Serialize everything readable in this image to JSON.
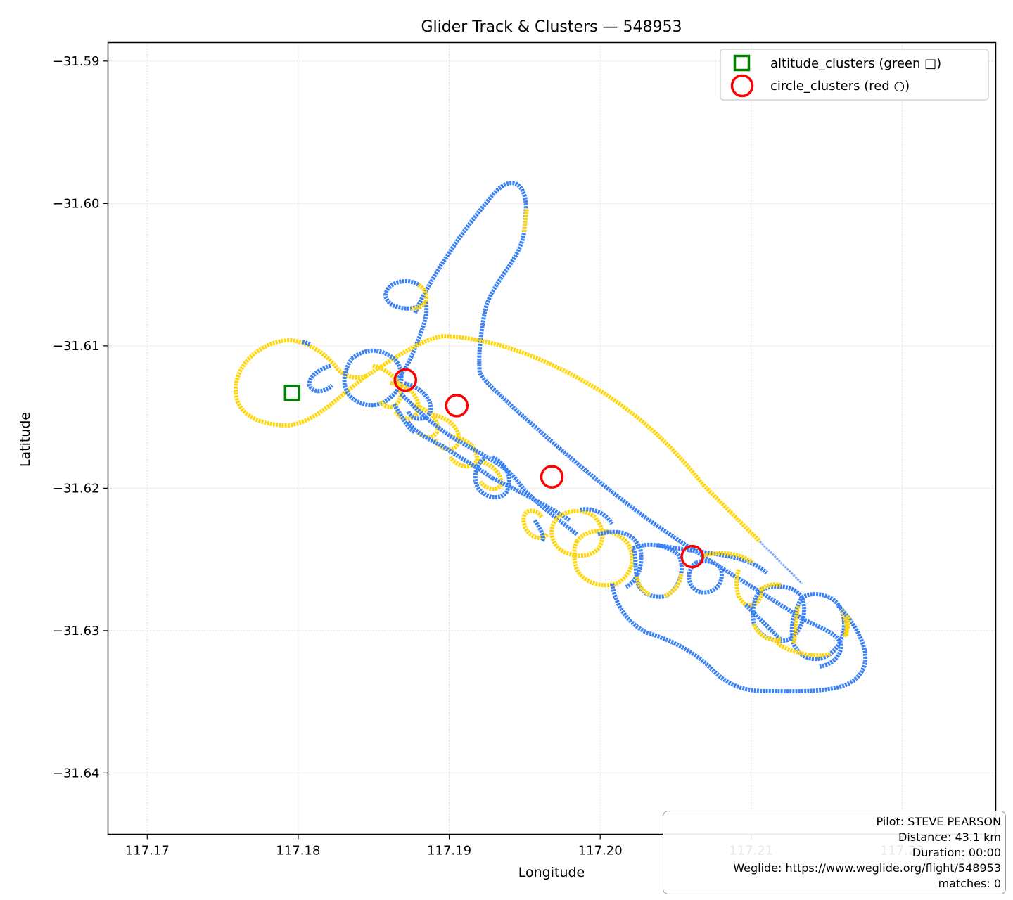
{
  "chart_data": {
    "type": "line",
    "title": "Glider Track & Clusters — 548953",
    "xlabel": "Longitude",
    "ylabel": "Latitude",
    "xlim": [
      117.1674,
      117.2262
    ],
    "ylim": [
      -31.6443,
      -31.5887
    ],
    "x_ticks": [
      117.17,
      117.18,
      117.19,
      117.2,
      117.21,
      117.22
    ],
    "x_tick_labels": [
      "117.17",
      "117.18",
      "117.19",
      "117.20",
      "117.21",
      "117.22"
    ],
    "y_ticks": [
      -31.59,
      -31.6,
      -31.61,
      -31.62,
      -31.63,
      -31.64
    ],
    "y_tick_labels": [
      "−31.59",
      "−31.60",
      "−31.61",
      "−31.62",
      "−31.63",
      "−31.64"
    ],
    "grid": true,
    "legend_position": "top-right",
    "colors": {
      "track_blue": "#3b82f6",
      "track_yellow": "#ffd60a",
      "altitude_cluster": "#008000",
      "circle_cluster": "#ff0000"
    },
    "series": [
      {
        "name": "altitude_clusters (green □)",
        "marker": "square",
        "points": [
          {
            "x": 117.1796,
            "y": -31.6133
          }
        ]
      },
      {
        "name": "circle_clusters (red ○)",
        "marker": "circle",
        "points": [
          {
            "x": 117.1871,
            "y": -31.6124
          },
          {
            "x": 117.1905,
            "y": -31.6142
          },
          {
            "x": 117.1968,
            "y": -31.6192
          },
          {
            "x": 117.2061,
            "y": -31.6248
          }
        ]
      }
    ]
  },
  "info": {
    "pilot": "Pilot: STEVE PEARSON",
    "distance": "Distance: 43.1 km",
    "duration": "Duration: 00:00",
    "weglide": "Weglide: https://www.weglide.org/flight/548953",
    "matches": "matches: 0"
  }
}
